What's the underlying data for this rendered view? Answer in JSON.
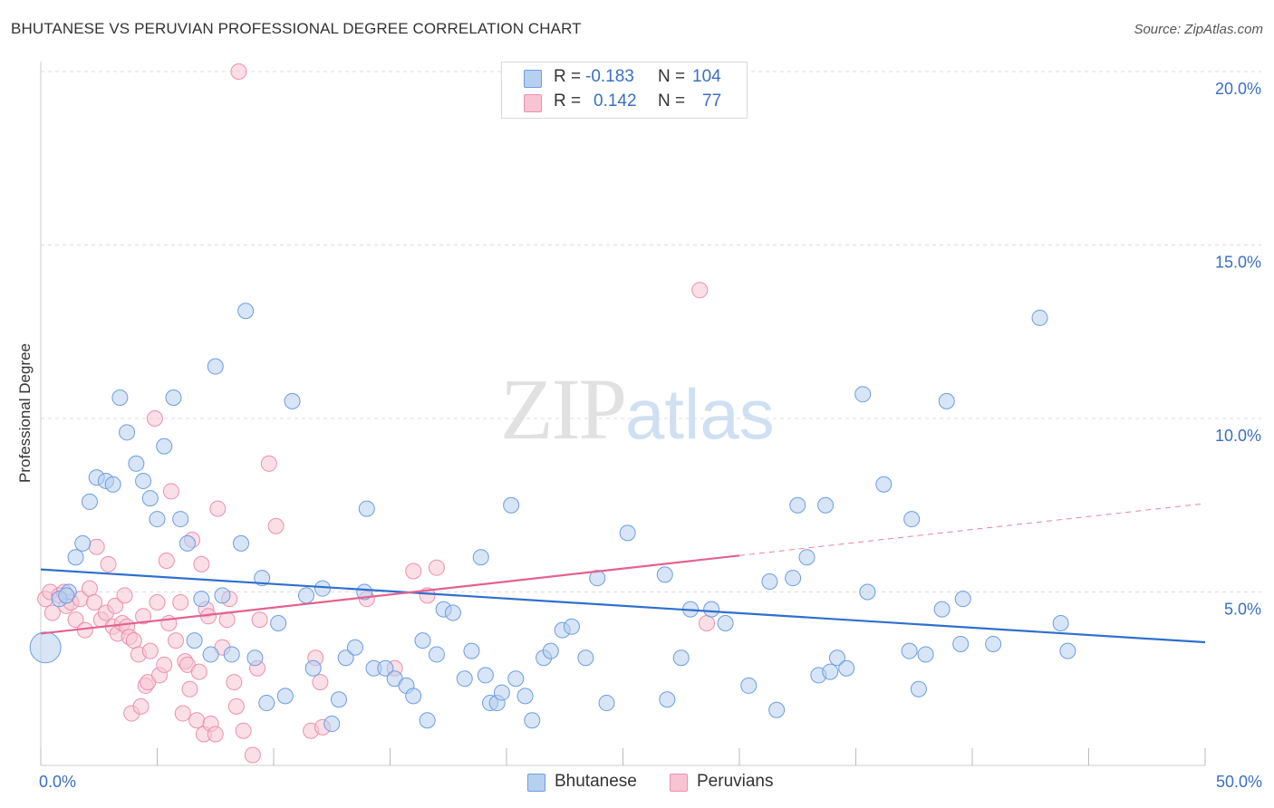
{
  "title": "BHUTANESE VS PERUVIAN PROFESSIONAL DEGREE CORRELATION CHART",
  "source": "Source: ZipAtlas.com",
  "watermark": {
    "part1": "ZIP",
    "part2": "atlas"
  },
  "colors": {
    "bhutanese_fill": "#b6d0f0",
    "bhutanese_stroke": "#6d9de0",
    "bhutanese_line": "#2f6fce",
    "peruvian_fill": "#f8c4d4",
    "peruvian_stroke": "#ec90ad",
    "peruvian_line": "#e2628f",
    "axis_text": "#3a6fc4",
    "grid": "#dcdcdc"
  },
  "legend": {
    "rows": [
      {
        "name": "Bhutanese",
        "r_label": "R =",
        "r_value": "-0.183",
        "n_label": "N =",
        "n_value": "104"
      },
      {
        "name": "Peruvians",
        "r_label": "R =",
        "r_value": "0.142",
        "n_label": "N =",
        "n_value": "77"
      }
    ],
    "bottom": [
      "Bhutanese",
      "Peruvians"
    ]
  },
  "chart_data": {
    "type": "scatter",
    "title": "BHUTANESE VS PERUVIAN PROFESSIONAL DEGREE CORRELATION CHART",
    "xlabel": "",
    "ylabel": "Professional Degree",
    "xlim": [
      0,
      50
    ],
    "ylim": [
      0,
      20.5
    ],
    "x_tick_labels": [
      "0.0%",
      "50.0%"
    ],
    "y_ticks": [
      5,
      10,
      15,
      20
    ],
    "y_tick_labels": [
      "5.0%",
      "10.0%",
      "15.0%",
      "20.0%"
    ],
    "grid": true,
    "series": [
      {
        "name": "Bhutanese",
        "r": -0.183,
        "n": 104,
        "trend": {
          "x": [
            0,
            50
          ],
          "y": [
            5.65,
            3.55
          ]
        },
        "points": [
          [
            0.2,
            3.4
          ],
          [
            1.2,
            5.0
          ],
          [
            1.5,
            6.0
          ],
          [
            1.8,
            6.4
          ],
          [
            2.1,
            7.6
          ],
          [
            2.4,
            8.3
          ],
          [
            2.8,
            8.2
          ],
          [
            3.1,
            8.1
          ],
          [
            3.4,
            10.6
          ],
          [
            3.7,
            9.6
          ],
          [
            4.1,
            8.7
          ],
          [
            4.4,
            8.2
          ],
          [
            4.7,
            7.7
          ],
          [
            5.0,
            7.1
          ],
          [
            5.3,
            9.2
          ],
          [
            5.7,
            10.6
          ],
          [
            6.0,
            7.1
          ],
          [
            6.3,
            6.4
          ],
          [
            6.6,
            3.6
          ],
          [
            6.9,
            4.8
          ],
          [
            7.3,
            3.2
          ],
          [
            7.5,
            11.5
          ],
          [
            7.8,
            4.9
          ],
          [
            8.2,
            3.2
          ],
          [
            8.6,
            6.4
          ],
          [
            8.8,
            13.1
          ],
          [
            9.2,
            3.1
          ],
          [
            9.5,
            5.4
          ],
          [
            9.7,
            1.8
          ],
          [
            10.2,
            4.1
          ],
          [
            10.5,
            2.0
          ],
          [
            10.8,
            10.5
          ],
          [
            11.4,
            4.9
          ],
          [
            11.7,
            2.8
          ],
          [
            12.1,
            5.1
          ],
          [
            12.5,
            1.2
          ],
          [
            12.8,
            1.9
          ],
          [
            13.1,
            3.1
          ],
          [
            13.5,
            3.4
          ],
          [
            13.9,
            5.0
          ],
          [
            14.0,
            7.4
          ],
          [
            14.3,
            2.8
          ],
          [
            14.8,
            2.8
          ],
          [
            15.2,
            2.5
          ],
          [
            15.7,
            2.3
          ],
          [
            16.0,
            2.0
          ],
          [
            16.4,
            3.6
          ],
          [
            16.6,
            1.3
          ],
          [
            17.0,
            3.2
          ],
          [
            17.3,
            4.5
          ],
          [
            17.7,
            4.4
          ],
          [
            18.2,
            2.5
          ],
          [
            18.5,
            3.3
          ],
          [
            18.9,
            6.0
          ],
          [
            19.1,
            2.6
          ],
          [
            19.3,
            1.8
          ],
          [
            19.6,
            1.8
          ],
          [
            19.8,
            2.1
          ],
          [
            20.2,
            7.5
          ],
          [
            20.4,
            2.5
          ],
          [
            20.8,
            2.0
          ],
          [
            21.1,
            1.3
          ],
          [
            21.6,
            3.1
          ],
          [
            21.9,
            3.3
          ],
          [
            22.4,
            3.9
          ],
          [
            22.8,
            4.0
          ],
          [
            23.4,
            3.1
          ],
          [
            23.9,
            5.4
          ],
          [
            24.3,
            1.8
          ],
          [
            25.2,
            6.7
          ],
          [
            26.9,
            1.9
          ],
          [
            26.8,
            5.5
          ],
          [
            27.5,
            3.1
          ],
          [
            27.9,
            4.5
          ],
          [
            28.8,
            4.5
          ],
          [
            29.4,
            4.1
          ],
          [
            30.4,
            2.3
          ],
          [
            31.3,
            5.3
          ],
          [
            31.6,
            1.6
          ],
          [
            32.3,
            5.4
          ],
          [
            32.5,
            7.5
          ],
          [
            32.9,
            6.0
          ],
          [
            33.4,
            2.6
          ],
          [
            33.7,
            7.5
          ],
          [
            33.9,
            2.7
          ],
          [
            34.2,
            3.1
          ],
          [
            34.6,
            2.8
          ],
          [
            35.3,
            10.7
          ],
          [
            35.5,
            5.0
          ],
          [
            36.2,
            8.1
          ],
          [
            37.3,
            3.3
          ],
          [
            37.4,
            7.1
          ],
          [
            37.7,
            2.2
          ],
          [
            38.0,
            3.2
          ],
          [
            38.7,
            4.5
          ],
          [
            38.9,
            10.5
          ],
          [
            39.5,
            3.5
          ],
          [
            39.6,
            4.8
          ],
          [
            40.9,
            3.5
          ],
          [
            42.9,
            12.9
          ],
          [
            43.8,
            4.1
          ],
          [
            44.1,
            3.3
          ],
          [
            0.8,
            4.8
          ],
          [
            1.1,
            4.9
          ]
        ]
      },
      {
        "name": "Peruvians",
        "r": 0.142,
        "n": 77,
        "trend": {
          "x": [
            0,
            30
          ],
          "y": [
            3.8,
            6.05
          ]
        },
        "trend_extension": {
          "x": [
            30,
            50
          ],
          "y": [
            6.05,
            7.55
          ]
        },
        "points": [
          [
            0.2,
            4.8
          ],
          [
            0.4,
            5.0
          ],
          [
            0.5,
            4.4
          ],
          [
            0.8,
            4.9
          ],
          [
            1.0,
            5.0
          ],
          [
            1.1,
            4.6
          ],
          [
            1.3,
            4.7
          ],
          [
            1.5,
            4.2
          ],
          [
            1.7,
            4.8
          ],
          [
            1.9,
            3.9
          ],
          [
            2.1,
            5.1
          ],
          [
            2.3,
            4.7
          ],
          [
            2.4,
            6.3
          ],
          [
            2.6,
            4.2
          ],
          [
            2.8,
            4.4
          ],
          [
            2.9,
            5.8
          ],
          [
            3.1,
            4.0
          ],
          [
            3.2,
            4.6
          ],
          [
            3.3,
            3.8
          ],
          [
            3.5,
            4.1
          ],
          [
            3.6,
            4.9
          ],
          [
            3.7,
            4.0
          ],
          [
            3.8,
            3.7
          ],
          [
            3.9,
            1.5
          ],
          [
            4.0,
            3.6
          ],
          [
            4.2,
            3.2
          ],
          [
            4.3,
            1.7
          ],
          [
            4.4,
            4.3
          ],
          [
            4.5,
            2.3
          ],
          [
            4.6,
            2.4
          ],
          [
            4.7,
            3.3
          ],
          [
            4.9,
            10.0
          ],
          [
            5.0,
            4.7
          ],
          [
            5.1,
            2.6
          ],
          [
            5.3,
            2.9
          ],
          [
            5.4,
            5.9
          ],
          [
            5.5,
            4.1
          ],
          [
            5.6,
            7.9
          ],
          [
            5.8,
            3.6
          ],
          [
            6.0,
            4.7
          ],
          [
            6.1,
            1.5
          ],
          [
            6.2,
            3.0
          ],
          [
            6.3,
            2.9
          ],
          [
            6.4,
            2.2
          ],
          [
            6.5,
            6.5
          ],
          [
            6.7,
            1.3
          ],
          [
            6.8,
            2.7
          ],
          [
            6.9,
            5.8
          ],
          [
            7.0,
            0.9
          ],
          [
            7.1,
            4.5
          ],
          [
            7.2,
            4.3
          ],
          [
            7.3,
            1.2
          ],
          [
            7.5,
            0.9
          ],
          [
            7.6,
            7.4
          ],
          [
            7.8,
            3.4
          ],
          [
            8.0,
            4.2
          ],
          [
            8.1,
            4.8
          ],
          [
            8.3,
            2.4
          ],
          [
            8.4,
            1.7
          ],
          [
            8.5,
            20.0
          ],
          [
            8.7,
            1.0
          ],
          [
            9.1,
            0.3
          ],
          [
            9.3,
            2.8
          ],
          [
            9.4,
            4.2
          ],
          [
            9.8,
            8.7
          ],
          [
            10.1,
            6.9
          ],
          [
            11.6,
            1.0
          ],
          [
            11.8,
            3.1
          ],
          [
            12.1,
            1.1
          ],
          [
            14.0,
            4.8
          ],
          [
            15.2,
            2.8
          ],
          [
            16.0,
            5.6
          ],
          [
            16.6,
            4.9
          ],
          [
            17.0,
            5.7
          ],
          [
            28.3,
            13.7
          ],
          [
            28.6,
            4.1
          ],
          [
            12.0,
            2.4
          ]
        ]
      }
    ]
  }
}
